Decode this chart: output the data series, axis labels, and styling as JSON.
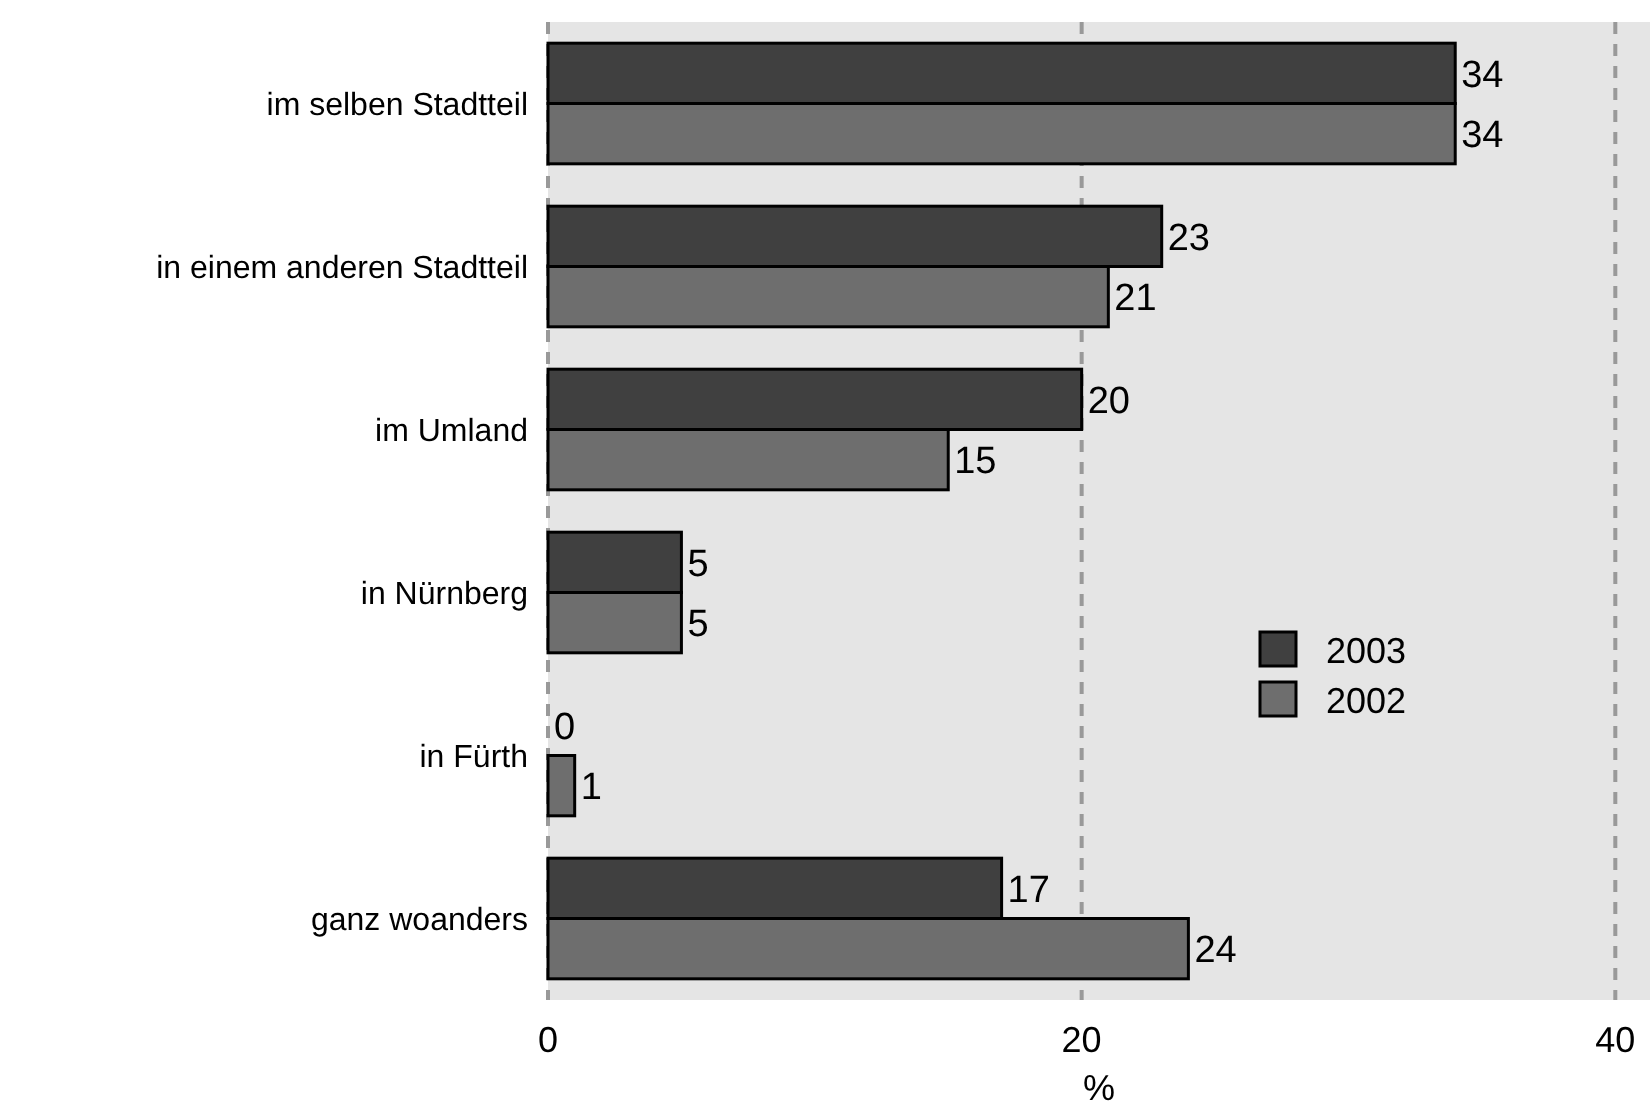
{
  "chart_data": {
    "type": "bar",
    "orientation": "horizontal",
    "xlabel": "%",
    "categories": [
      "im selben Stadtteil",
      "in einem anderen Stadtteil",
      "im Umland",
      "in Nürnberg",
      "in Fürth",
      "ganz woanders"
    ],
    "series": [
      {
        "name": "2003",
        "color": "#404040",
        "values": [
          34,
          23,
          20,
          5,
          0,
          17
        ]
      },
      {
        "name": "2002",
        "color": "#6e6e6e",
        "values": [
          34,
          21,
          15,
          5,
          1,
          24
        ]
      }
    ],
    "xlim": [
      0,
      41.3
    ],
    "xticks": [
      0,
      20,
      40
    ],
    "grid": "x",
    "data_labels": true,
    "legend": "right"
  }
}
